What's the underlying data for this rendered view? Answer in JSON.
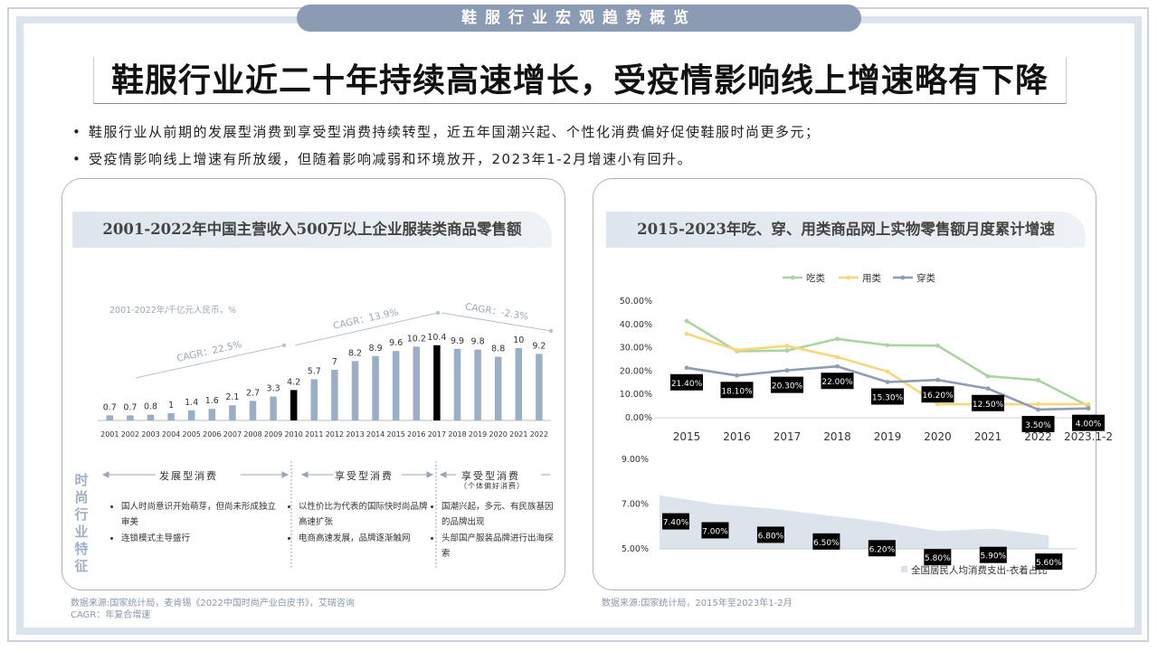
{
  "header": {
    "banner": "鞋服行业宏观趋势概览"
  },
  "title": "鞋服行业近二十年持续高速增长，受疫情影响线上增速略有下降",
  "bullets": [
    "鞋服行业从前期的发展型消费到享受型消费持续转型，近五年国潮兴起、个性化消费偏好促使鞋服时尚更多元；",
    "受疫情影响线上增速有所放缓，但随着影响减弱和环境放开，2023年1-2月增速小有回升。"
  ],
  "left_panel": {
    "title": "2001-2022年中国主营收入500万以上企业服装类商品零售额",
    "unit_note": "2001-2022年/千亿元人民币，%",
    "cagr": [
      "CAGR：22.5%",
      "CAGR：13.9%",
      "CAGR：-2.3%"
    ],
    "feature_label": "时尚行业特征",
    "stages": [
      {
        "name": "发展型消费",
        "sub": "",
        "points": [
          "国人时尚意识开始萌芽，但尚未形成独立审美",
          "连锁模式主导盛行"
        ]
      },
      {
        "name": "享受型消费",
        "sub": "",
        "points": [
          "以性价比为代表的国际快时尚品牌高速扩张",
          "电商高速发展，品牌逐渐触网"
        ]
      },
      {
        "name": "享受型消费",
        "sub": "（个体偏好消费）",
        "points": [
          "国潮兴起，多元、有民族基因的品牌出现",
          "头部国产服装品牌进行出海探索"
        ]
      }
    ],
    "source": [
      "数据来源:国家统计局，麦肯锡《2022中国时尚产业白皮书》，艾瑞咨询",
      "CAGR：年复合增速"
    ]
  },
  "right_panel": {
    "title": "2015-2023年吃、穿、用类商品网上实物零售额月度累计增速",
    "source": "数据来源:国家统计局，2015年至2023年1-2月"
  },
  "colors": {
    "bar": "#9aaec6",
    "bar_highlight": "#000000",
    "eat": "#a8d5a0",
    "use": "#f7d77a",
    "wear": "#8c9db5",
    "area": "#dde3ea"
  },
  "chart_data": [
    {
      "type": "bar",
      "categories": [
        "2001",
        "2002",
        "2003",
        "2004",
        "2005",
        "2006",
        "2007",
        "2008",
        "2009",
        "2010",
        "2011",
        "2012",
        "2013",
        "2014",
        "2015",
        "2016",
        "2017",
        "2018",
        "2019",
        "2020",
        "2021",
        "2022"
      ],
      "values": [
        0.7,
        0.7,
        0.8,
        1,
        1.4,
        1.6,
        2.1,
        2.7,
        3.3,
        4.2,
        5.7,
        7,
        8.2,
        8.9,
        9.6,
        10.2,
        10.4,
        9.9,
        9.8,
        8.8,
        10,
        9.2
      ],
      "highlight": [
        "2010",
        "2017"
      ],
      "title": "2001-2022年中国主营收入500万以上企业服装类商品零售额",
      "ylim": [
        0,
        11
      ]
    },
    {
      "type": "line",
      "categories": [
        "2015",
        "2016",
        "2017",
        "2018",
        "2019",
        "2020",
        "2021",
        "2022",
        "2023.1-2"
      ],
      "series": [
        {
          "name": "吃类",
          "values": [
            41.5,
            28.5,
            28.8,
            33.8,
            31.1,
            30.9,
            17.8,
            16.1,
            5.0
          ]
        },
        {
          "name": "用类",
          "values": [
            36.0,
            29.0,
            30.8,
            26.0,
            19.8,
            5.8,
            5.8,
            5.8,
            5.8
          ]
        },
        {
          "name": "穿类",
          "values": [
            21.4,
            18.1,
            20.3,
            22.0,
            15.3,
            16.2,
            12.5,
            3.5,
            4.0
          ]
        }
      ],
      "data_labels": [
        "21.40%",
        "18.10%",
        "20.30%",
        "22.00%",
        "15.30%",
        "16.20%",
        "12.50%",
        "3.50%",
        "4.00%"
      ],
      "yticks": [
        "50.00%",
        "40.00%",
        "30.00%",
        "20.00%",
        "10.00%",
        "0.00%"
      ],
      "ylim": [
        0,
        50
      ],
      "legend": "top"
    },
    {
      "type": "area",
      "categories": [
        "2015",
        "2016",
        "2017",
        "2018",
        "2019",
        "2020",
        "2021",
        "2022"
      ],
      "series": [
        {
          "name": "全国居民人均消费支出-衣着占比",
          "values": [
            7.4,
            7.0,
            6.8,
            6.5,
            6.2,
            5.8,
            5.9,
            5.6
          ]
        }
      ],
      "data_labels": [
        "7.40%",
        "7.00%",
        "6.80%",
        "6.50%",
        "6.20%",
        "5.80%",
        "5.90%",
        "5.60%"
      ],
      "yticks": [
        "9.00%",
        "7.00%",
        "5.00%"
      ],
      "ylim": [
        5,
        9
      ],
      "legend": "bottom-right"
    }
  ]
}
